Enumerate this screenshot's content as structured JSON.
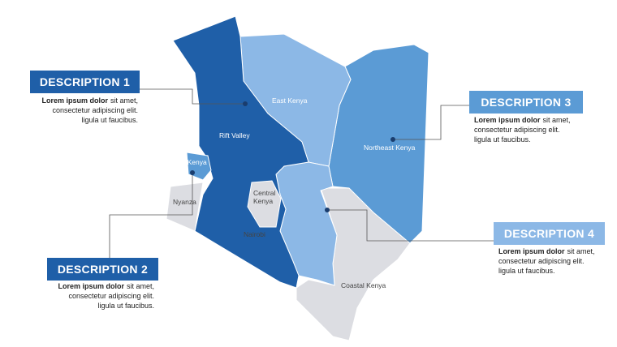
{
  "descriptions": [
    {
      "title": "DESCRIPTION 1",
      "bold": "Lorem ipsum dolor",
      "lines": [
        "sit amet,",
        "consectetur adipiscing elit.",
        "ligula ut faucibus."
      ]
    },
    {
      "title": "DESCRIPTION 2",
      "bold": "Lorem ipsum dolor",
      "lines": [
        "sit amet,",
        "consectetur adipiscing elit.",
        "ligula ut faucibus."
      ]
    },
    {
      "title": "DESCRIPTION 3",
      "bold": "Lorem ipsum dolor",
      "lines": [
        "sit amet,",
        "consectetur adipiscing elit.",
        "ligula ut faucibus."
      ]
    },
    {
      "title": "DESCRIPTION 4",
      "bold": "Lorem ipsum dolor",
      "lines": [
        "sit amet,",
        "consectetur adipiscing elit.",
        "ligula ut faucibus."
      ]
    }
  ],
  "regions": [
    "Rift Valley",
    "East Kenya",
    "Northeast Kenya",
    "West Kenya",
    "Nyanza",
    [
      "Central",
      "Kenya"
    ],
    "Nairobi",
    "Coastal Kenya"
  ]
}
